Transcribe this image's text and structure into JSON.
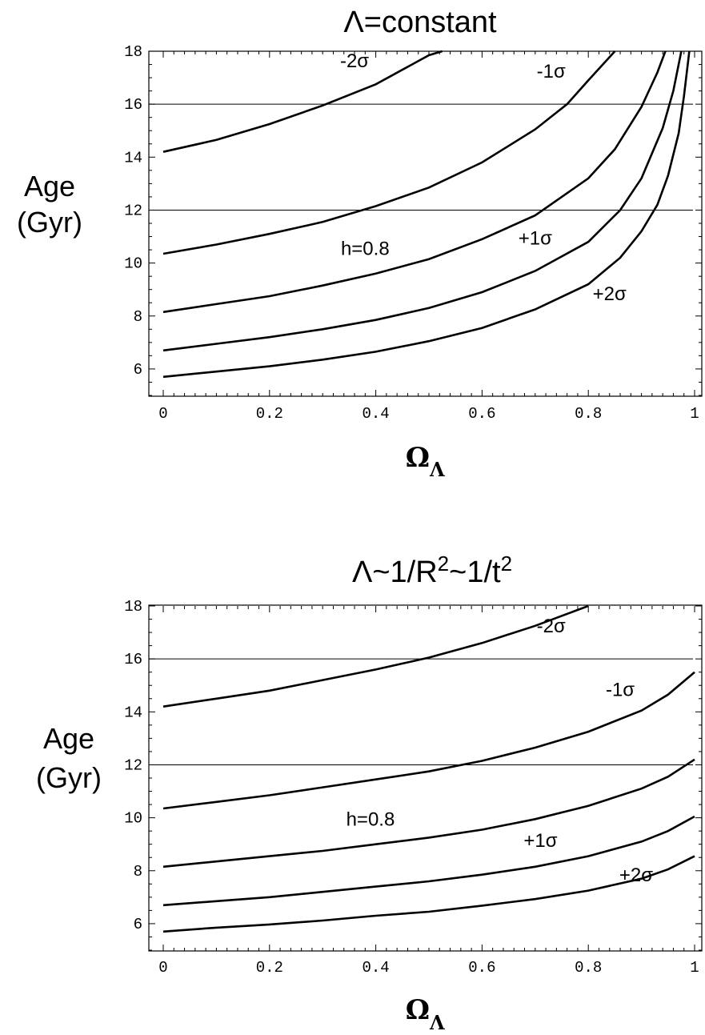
{
  "chart_data": [
    {
      "type": "line",
      "title": "Λ=constant",
      "title_parts": {
        "main": "Λ=constant"
      },
      "ylabel_lines": [
        "Age",
        "(Gyr)"
      ],
      "xlabel": {
        "main": "Ω",
        "sub": "Λ"
      },
      "xlim": [
        0,
        1
      ],
      "ylim": [
        5,
        18
      ],
      "xticks": [
        0,
        0.2,
        0.4,
        0.6,
        0.8,
        1
      ],
      "xtick_labels": [
        "0",
        "0.2",
        "0.4",
        "0.6",
        "0.8",
        "1"
      ],
      "yticks": [
        6,
        8,
        10,
        12,
        14,
        16,
        18
      ],
      "ytick_labels": [
        "6",
        "8",
        "10",
        "12",
        "14",
        "16",
        "18"
      ],
      "reference_lines_y": [
        16,
        12
      ],
      "series": [
        {
          "name": "-2σ",
          "points": [
            [
              0,
              14.2
            ],
            [
              0.1,
              14.65
            ],
            [
              0.2,
              15.25
            ],
            [
              0.3,
              15.95
            ],
            [
              0.4,
              16.75
            ],
            [
              0.5,
              17.85
            ],
            [
              0.525,
              18
            ]
          ]
        },
        {
          "name": "-1σ",
          "points": [
            [
              0,
              10.35
            ],
            [
              0.1,
              10.7
            ],
            [
              0.2,
              11.1
            ],
            [
              0.3,
              11.55
            ],
            [
              0.4,
              12.15
            ],
            [
              0.5,
              12.85
            ],
            [
              0.6,
              13.8
            ],
            [
              0.7,
              15.05
            ],
            [
              0.76,
              16.0
            ],
            [
              0.8,
              16.9
            ],
            [
              0.85,
              18
            ]
          ]
        },
        {
          "name": "h=0.8",
          "points": [
            [
              0,
              8.15
            ],
            [
              0.1,
              8.45
            ],
            [
              0.2,
              8.75
            ],
            [
              0.3,
              9.15
            ],
            [
              0.4,
              9.6
            ],
            [
              0.5,
              10.15
            ],
            [
              0.6,
              10.9
            ],
            [
              0.7,
              11.8
            ],
            [
              0.8,
              13.2
            ],
            [
              0.85,
              14.3
            ],
            [
              0.9,
              15.9
            ],
            [
              0.93,
              17.2
            ],
            [
              0.945,
              18
            ]
          ]
        },
        {
          "name": "+1σ",
          "points": [
            [
              0,
              6.7
            ],
            [
              0.1,
              6.95
            ],
            [
              0.2,
              7.2
            ],
            [
              0.3,
              7.5
            ],
            [
              0.4,
              7.85
            ],
            [
              0.5,
              8.3
            ],
            [
              0.6,
              8.9
            ],
            [
              0.7,
              9.7
            ],
            [
              0.8,
              10.8
            ],
            [
              0.86,
              12.0
            ],
            [
              0.9,
              13.2
            ],
            [
              0.94,
              15.1
            ],
            [
              0.96,
              16.5
            ],
            [
              0.975,
              18
            ]
          ]
        },
        {
          "name": "+2σ",
          "points": [
            [
              0,
              5.7
            ],
            [
              0.1,
              5.9
            ],
            [
              0.2,
              6.1
            ],
            [
              0.3,
              6.35
            ],
            [
              0.4,
              6.65
            ],
            [
              0.5,
              7.05
            ],
            [
              0.6,
              7.55
            ],
            [
              0.7,
              8.25
            ],
            [
              0.8,
              9.2
            ],
            [
              0.86,
              10.2
            ],
            [
              0.9,
              11.2
            ],
            [
              0.93,
              12.2
            ],
            [
              0.95,
              13.3
            ],
            [
              0.97,
              14.9
            ],
            [
              0.98,
              16.3
            ],
            [
              0.99,
              18
            ]
          ]
        }
      ],
      "curve_labels": [
        {
          "text": "-2σ",
          "x": 0.36,
          "y": 17.4
        },
        {
          "text": "-1σ",
          "x": 0.73,
          "y": 17.0
        },
        {
          "text": "h=0.8",
          "x": 0.38,
          "y": 10.3
        },
        {
          "text": "+1σ",
          "x": 0.7,
          "y": 10.7
        },
        {
          "text": "+2σ",
          "x": 0.84,
          "y": 8.6
        }
      ]
    },
    {
      "type": "line",
      "title": "Λ~1/R²~1/t²",
      "title_parts": {
        "a": "Λ~1/R",
        "sup1": "2",
        "b": "~1/t",
        "sup2": "2"
      },
      "ylabel_lines": [
        "Age",
        "(Gyr)"
      ],
      "xlabel": {
        "main": "Ω",
        "sub": "Λ"
      },
      "xlim": [
        0,
        1
      ],
      "ylim": [
        5,
        18
      ],
      "xticks": [
        0,
        0.2,
        0.4,
        0.6,
        0.8,
        1
      ],
      "xtick_labels": [
        "0",
        "0.2",
        "0.4",
        "0.6",
        "0.8",
        "1"
      ],
      "yticks": [
        6,
        8,
        10,
        12,
        14,
        16,
        18
      ],
      "ytick_labels": [
        "6",
        "8",
        "10",
        "12",
        "14",
        "16",
        "18"
      ],
      "reference_lines_y": [
        16,
        12
      ],
      "series": [
        {
          "name": "-2σ",
          "points": [
            [
              0,
              14.2
            ],
            [
              0.1,
              14.5
            ],
            [
              0.2,
              14.8
            ],
            [
              0.3,
              15.2
            ],
            [
              0.4,
              15.6
            ],
            [
              0.5,
              16.05
            ],
            [
              0.6,
              16.6
            ],
            [
              0.7,
              17.25
            ],
            [
              0.8,
              18
            ]
          ]
        },
        {
          "name": "-1σ",
          "points": [
            [
              0,
              10.35
            ],
            [
              0.1,
              10.6
            ],
            [
              0.2,
              10.85
            ],
            [
              0.3,
              11.15
            ],
            [
              0.4,
              11.45
            ],
            [
              0.5,
              11.75
            ],
            [
              0.6,
              12.15
            ],
            [
              0.7,
              12.65
            ],
            [
              0.8,
              13.25
            ],
            [
              0.9,
              14.05
            ],
            [
              0.95,
              14.65
            ],
            [
              1.0,
              15.5
            ]
          ]
        },
        {
          "name": "h=0.8",
          "points": [
            [
              0,
              8.15
            ],
            [
              0.1,
              8.35
            ],
            [
              0.2,
              8.55
            ],
            [
              0.3,
              8.75
            ],
            [
              0.4,
              9.0
            ],
            [
              0.5,
              9.25
            ],
            [
              0.6,
              9.55
            ],
            [
              0.7,
              9.95
            ],
            [
              0.8,
              10.45
            ],
            [
              0.9,
              11.1
            ],
            [
              0.95,
              11.55
            ],
            [
              1.0,
              12.2
            ]
          ]
        },
        {
          "name": "+1σ",
          "points": [
            [
              0,
              6.7
            ],
            [
              0.1,
              6.85
            ],
            [
              0.2,
              7.0
            ],
            [
              0.3,
              7.2
            ],
            [
              0.4,
              7.4
            ],
            [
              0.5,
              7.6
            ],
            [
              0.6,
              7.85
            ],
            [
              0.7,
              8.15
            ],
            [
              0.8,
              8.55
            ],
            [
              0.9,
              9.1
            ],
            [
              0.95,
              9.5
            ],
            [
              1.0,
              10.05
            ]
          ]
        },
        {
          "name": "+2σ",
          "points": [
            [
              0,
              5.7
            ],
            [
              0.1,
              5.85
            ],
            [
              0.2,
              5.97
            ],
            [
              0.3,
              6.12
            ],
            [
              0.4,
              6.3
            ],
            [
              0.5,
              6.45
            ],
            [
              0.6,
              6.68
            ],
            [
              0.7,
              6.93
            ],
            [
              0.8,
              7.25
            ],
            [
              0.9,
              7.7
            ],
            [
              0.95,
              8.05
            ],
            [
              1.0,
              8.55
            ]
          ]
        }
      ],
      "curve_labels": [
        {
          "text": "-2σ",
          "x": 0.73,
          "y": 17.0
        },
        {
          "text": "-1σ",
          "x": 0.86,
          "y": 14.6
        },
        {
          "text": "h=0.8",
          "x": 0.39,
          "y": 9.7
        },
        {
          "text": "+1σ",
          "x": 0.71,
          "y": 8.9
        },
        {
          "text": "+2σ",
          "x": 0.89,
          "y": 7.6
        }
      ]
    }
  ]
}
